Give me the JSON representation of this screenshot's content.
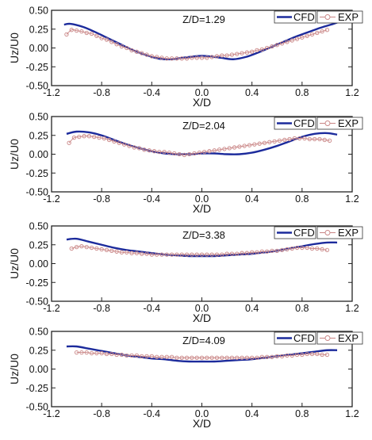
{
  "chart_data": [
    {
      "type": "line",
      "annotation": "Z/D=1.29",
      "xlabel": "X/D",
      "ylabel": "Uz/U0",
      "xlim": [
        -1.2,
        1.2
      ],
      "ylim": [
        -0.5,
        0.5
      ],
      "xticks": [
        "-1.2",
        "-0.8",
        "-0.4",
        "0.0",
        "0.4",
        "0.8",
        "1.2"
      ],
      "yticks": [
        "0.50",
        "0.25",
        "0.00",
        "-0.25",
        "-0.50"
      ],
      "legend": "top-right",
      "series": [
        {
          "name": "CFD",
          "color": "#1c2b9c",
          "marker": "none",
          "x": [
            -1.1,
            -1.05,
            -0.95,
            -0.85,
            -0.75,
            -0.65,
            -0.55,
            -0.45,
            -0.35,
            -0.25,
            -0.15,
            -0.05,
            0.0,
            0.05,
            0.15,
            0.25,
            0.35,
            0.45,
            0.55,
            0.65,
            0.75,
            0.85,
            0.95,
            1.05,
            1.1
          ],
          "y": [
            0.31,
            0.32,
            0.28,
            0.21,
            0.13,
            0.05,
            -0.03,
            -0.09,
            -0.14,
            -0.15,
            -0.13,
            -0.11,
            -0.105,
            -0.11,
            -0.13,
            -0.15,
            -0.12,
            -0.06,
            0.01,
            0.08,
            0.15,
            0.21,
            0.27,
            0.32,
            0.35
          ]
        },
        {
          "name": "EXP",
          "color": "#c98585",
          "marker": "circle",
          "x": [
            -1.08,
            -1.04,
            -1.0,
            -0.96,
            -0.92,
            -0.88,
            -0.84,
            -0.8,
            -0.76,
            -0.72,
            -0.68,
            -0.64,
            -0.6,
            -0.56,
            -0.52,
            -0.48,
            -0.44,
            -0.4,
            -0.36,
            -0.32,
            -0.28,
            -0.24,
            -0.2,
            -0.16,
            -0.12,
            -0.08,
            -0.04,
            0.0,
            0.04,
            0.08,
            0.12,
            0.16,
            0.2,
            0.24,
            0.28,
            0.32,
            0.36,
            0.4,
            0.44,
            0.48,
            0.52,
            0.56,
            0.6,
            0.64,
            0.68,
            0.72,
            0.76,
            0.8,
            0.84,
            0.88,
            0.92,
            0.96,
            1.0
          ],
          "y": [
            0.18,
            0.24,
            0.23,
            0.22,
            0.2,
            0.19,
            0.16,
            0.13,
            0.11,
            0.08,
            0.05,
            0.02,
            0.0,
            -0.03,
            -0.05,
            -0.07,
            -0.09,
            -0.11,
            -0.12,
            -0.13,
            -0.14,
            -0.14,
            -0.14,
            -0.14,
            -0.14,
            -0.13,
            -0.13,
            -0.13,
            -0.13,
            -0.12,
            -0.11,
            -0.1,
            -0.1,
            -0.09,
            -0.08,
            -0.07,
            -0.06,
            -0.05,
            -0.03,
            -0.02,
            0.0,
            0.02,
            0.04,
            0.06,
            0.08,
            0.1,
            0.12,
            0.14,
            0.16,
            0.18,
            0.2,
            0.22,
            0.24
          ]
        }
      ]
    },
    {
      "type": "line",
      "annotation": "Z/D=2.04",
      "xlabel": "X/D",
      "ylabel": "Uz/U0",
      "xlim": [
        -1.2,
        1.2
      ],
      "ylim": [
        -0.5,
        0.5
      ],
      "xticks": [
        "-1.2",
        "-0.8",
        "-0.4",
        "0.0",
        "0.4",
        "0.8",
        "1.2"
      ],
      "yticks": [
        "0.50",
        "0.25",
        "0.00",
        "-0.25",
        "-0.50"
      ],
      "legend": "top-right",
      "series": [
        {
          "name": "CFD",
          "color": "#1c2b9c",
          "marker": "none",
          "x": [
            -1.08,
            -1.0,
            -0.9,
            -0.8,
            -0.7,
            -0.6,
            -0.5,
            -0.4,
            -0.3,
            -0.2,
            -0.1,
            0.0,
            0.1,
            0.2,
            0.3,
            0.4,
            0.5,
            0.6,
            0.7,
            0.8,
            0.9,
            1.0,
            1.08
          ],
          "y": [
            0.27,
            0.3,
            0.29,
            0.25,
            0.19,
            0.13,
            0.08,
            0.04,
            0.01,
            0.0,
            0.0,
            0.01,
            0.01,
            0.0,
            0.0,
            0.02,
            0.06,
            0.11,
            0.17,
            0.23,
            0.27,
            0.28,
            0.26
          ]
        },
        {
          "name": "EXP",
          "color": "#c98585",
          "marker": "circle",
          "x": [
            -1.06,
            -1.02,
            -0.98,
            -0.94,
            -0.9,
            -0.86,
            -0.82,
            -0.78,
            -0.74,
            -0.7,
            -0.66,
            -0.62,
            -0.58,
            -0.54,
            -0.5,
            -0.46,
            -0.42,
            -0.38,
            -0.34,
            -0.3,
            -0.26,
            -0.22,
            -0.18,
            -0.14,
            -0.1,
            -0.06,
            -0.02,
            0.02,
            0.06,
            0.1,
            0.14,
            0.18,
            0.22,
            0.26,
            0.3,
            0.34,
            0.38,
            0.42,
            0.46,
            0.5,
            0.54,
            0.58,
            0.62,
            0.66,
            0.7,
            0.74,
            0.78,
            0.82,
            0.86,
            0.9,
            0.94,
            0.98,
            1.02
          ],
          "y": [
            0.15,
            0.22,
            0.23,
            0.24,
            0.24,
            0.23,
            0.22,
            0.21,
            0.19,
            0.17,
            0.15,
            0.13,
            0.11,
            0.09,
            0.08,
            0.06,
            0.05,
            0.04,
            0.03,
            0.03,
            0.02,
            0.01,
            0.0,
            -0.01,
            0.0,
            0.01,
            0.02,
            0.03,
            0.04,
            0.05,
            0.06,
            0.07,
            0.08,
            0.09,
            0.1,
            0.11,
            0.12,
            0.13,
            0.14,
            0.15,
            0.16,
            0.17,
            0.18,
            0.19,
            0.2,
            0.21,
            0.21,
            0.21,
            0.2,
            0.2,
            0.2,
            0.19,
            0.18
          ]
        }
      ]
    },
    {
      "type": "line",
      "annotation": "Z/D=3.38",
      "xlabel": "X/D",
      "ylabel": "Uz/U0",
      "xlim": [
        -1.2,
        1.2
      ],
      "ylim": [
        -0.5,
        0.5
      ],
      "xticks": [
        "-1.2",
        "-0.8",
        "-0.4",
        "0.0",
        "0.4",
        "0.8",
        "1.2"
      ],
      "yticks": [
        "0.50",
        "0.25",
        "0.00",
        "-0.25",
        "-0.50"
      ],
      "legend": "top-right",
      "series": [
        {
          "name": "CFD",
          "color": "#1c2b9c",
          "marker": "none",
          "x": [
            -1.08,
            -1.0,
            -0.9,
            -0.8,
            -0.7,
            -0.6,
            -0.5,
            -0.4,
            -0.3,
            -0.2,
            -0.1,
            0.0,
            0.1,
            0.2,
            0.3,
            0.4,
            0.5,
            0.6,
            0.7,
            0.8,
            0.9,
            1.0,
            1.08
          ],
          "y": [
            0.32,
            0.33,
            0.29,
            0.25,
            0.21,
            0.18,
            0.16,
            0.14,
            0.12,
            0.11,
            0.1,
            0.1,
            0.1,
            0.11,
            0.12,
            0.13,
            0.15,
            0.17,
            0.2,
            0.23,
            0.26,
            0.28,
            0.28
          ]
        },
        {
          "name": "EXP",
          "color": "#c98585",
          "marker": "circle",
          "x": [
            -1.04,
            -1.0,
            -0.96,
            -0.92,
            -0.88,
            -0.84,
            -0.8,
            -0.76,
            -0.72,
            -0.68,
            -0.64,
            -0.6,
            -0.56,
            -0.52,
            -0.48,
            -0.44,
            -0.4,
            -0.36,
            -0.32,
            -0.28,
            -0.24,
            -0.2,
            -0.16,
            -0.12,
            -0.08,
            -0.04,
            0.0,
            0.04,
            0.08,
            0.12,
            0.16,
            0.2,
            0.24,
            0.28,
            0.32,
            0.36,
            0.4,
            0.44,
            0.48,
            0.52,
            0.56,
            0.6,
            0.64,
            0.68,
            0.72,
            0.76,
            0.8,
            0.84,
            0.88,
            0.92,
            0.96,
            1.0
          ],
          "y": [
            0.2,
            0.22,
            0.23,
            0.22,
            0.21,
            0.2,
            0.19,
            0.18,
            0.17,
            0.16,
            0.15,
            0.15,
            0.14,
            0.14,
            0.13,
            0.13,
            0.12,
            0.12,
            0.12,
            0.12,
            0.12,
            0.12,
            0.12,
            0.12,
            0.12,
            0.12,
            0.12,
            0.12,
            0.12,
            0.12,
            0.12,
            0.13,
            0.13,
            0.13,
            0.14,
            0.14,
            0.15,
            0.15,
            0.16,
            0.16,
            0.17,
            0.17,
            0.18,
            0.19,
            0.2,
            0.21,
            0.21,
            0.21,
            0.2,
            0.2,
            0.19,
            0.18
          ]
        }
      ]
    },
    {
      "type": "line",
      "annotation": "Z/D=4.09",
      "xlabel": "X/D",
      "ylabel": "Uz/U0",
      "xlim": [
        -1.2,
        1.2
      ],
      "ylim": [
        -0.5,
        0.5
      ],
      "xticks": [
        "-1.2",
        "-0.8",
        "-0.4",
        "0.0",
        "0.4",
        "0.8",
        "1.2"
      ],
      "yticks": [
        "0.50",
        "0.25",
        "0.00",
        "-0.25",
        "-0.50"
      ],
      "legend": "top-right",
      "series": [
        {
          "name": "CFD",
          "color": "#1c2b9c",
          "marker": "none",
          "x": [
            -1.08,
            -1.0,
            -0.9,
            -0.8,
            -0.7,
            -0.6,
            -0.5,
            -0.4,
            -0.3,
            -0.2,
            -0.1,
            0.0,
            0.1,
            0.2,
            0.3,
            0.4,
            0.5,
            0.6,
            0.7,
            0.8,
            0.9,
            1.0,
            1.08
          ],
          "y": [
            0.3,
            0.3,
            0.27,
            0.24,
            0.21,
            0.18,
            0.16,
            0.14,
            0.13,
            0.11,
            0.1,
            0.1,
            0.1,
            0.11,
            0.12,
            0.13,
            0.15,
            0.17,
            0.19,
            0.21,
            0.23,
            0.25,
            0.25
          ]
        },
        {
          "name": "EXP",
          "color": "#c98585",
          "marker": "circle",
          "x": [
            -1.0,
            -0.96,
            -0.92,
            -0.88,
            -0.84,
            -0.8,
            -0.76,
            -0.72,
            -0.68,
            -0.64,
            -0.6,
            -0.56,
            -0.52,
            -0.48,
            -0.44,
            -0.4,
            -0.36,
            -0.32,
            -0.28,
            -0.24,
            -0.2,
            -0.16,
            -0.12,
            -0.08,
            -0.04,
            0.0,
            0.04,
            0.08,
            0.12,
            0.16,
            0.2,
            0.24,
            0.28,
            0.32,
            0.36,
            0.4,
            0.44,
            0.48,
            0.52,
            0.56,
            0.6,
            0.64,
            0.68,
            0.72,
            0.76,
            0.8,
            0.84,
            0.88,
            0.92,
            0.96,
            1.0
          ],
          "y": [
            0.22,
            0.22,
            0.22,
            0.21,
            0.21,
            0.21,
            0.2,
            0.2,
            0.19,
            0.19,
            0.18,
            0.18,
            0.18,
            0.17,
            0.17,
            0.17,
            0.16,
            0.16,
            0.16,
            0.16,
            0.15,
            0.15,
            0.15,
            0.15,
            0.15,
            0.15,
            0.15,
            0.15,
            0.15,
            0.15,
            0.15,
            0.15,
            0.15,
            0.15,
            0.15,
            0.15,
            0.15,
            0.16,
            0.16,
            0.16,
            0.17,
            0.17,
            0.18,
            0.18,
            0.19,
            0.19,
            0.2,
            0.2,
            0.2,
            0.19,
            0.19
          ]
        }
      ]
    }
  ]
}
